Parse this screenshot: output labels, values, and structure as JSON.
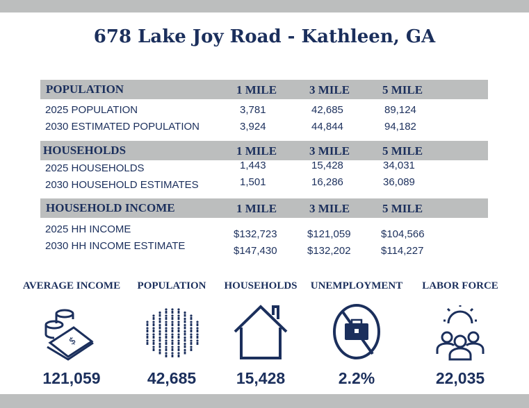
{
  "title": "678 Lake Joy Road -  Kathleen, GA",
  "columns": [
    "1 MILE",
    "3 MILE",
    "5 MILE"
  ],
  "sections": [
    {
      "header": "POPULATION",
      "rows": [
        {
          "label": "2025 POPULATION",
          "values": [
            "3,781",
            "42,685",
            "89,124"
          ]
        },
        {
          "label": "2030 ESTIMATED POPULATION",
          "values": [
            "3,924",
            "44,844",
            "94,182"
          ]
        }
      ]
    },
    {
      "header": "HOUSEHOLDS",
      "rows": [
        {
          "label": "2025 HOUSEHOLDS",
          "values": [
            "1,443",
            "15,428",
            "34,031"
          ]
        },
        {
          "label": "2030 HOUSEHOLD ESTIMATES",
          "values": [
            "1,501",
            "16,286",
            "36,089"
          ]
        }
      ]
    },
    {
      "header": "HOUSEHOLD INCOME",
      "rows": [
        {
          "label": "2025 HH INCOME",
          "values": [
            "$132,723",
            "$121,059",
            "$104,566"
          ]
        },
        {
          "label": "2030 HH INCOME ESTIMATE",
          "values": [
            "$147,430",
            "$132,202",
            "$114,227"
          ]
        }
      ]
    }
  ],
  "stats": [
    {
      "label": "AVERAGE INCOME",
      "value": "121,059",
      "icon": "money-coins-icon"
    },
    {
      "label": "POPULATION",
      "value": "42,685",
      "icon": "crowd-icon"
    },
    {
      "label": "HOUSEHOLDS",
      "value": "15,428",
      "icon": "house-icon"
    },
    {
      "label": "UNEMPLOYMENT",
      "value": "2.2%",
      "icon": "no-briefcase-icon"
    },
    {
      "label": "LABOR FORCE",
      "value": "22,035",
      "icon": "team-gear-icon"
    }
  ],
  "colors": {
    "navy": "#1b2f5c",
    "band": "#bcbebe"
  }
}
